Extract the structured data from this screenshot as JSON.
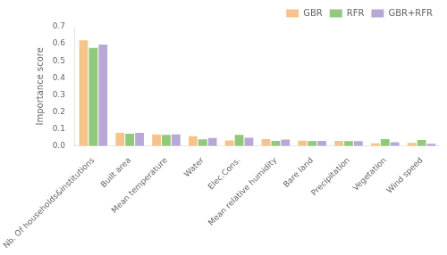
{
  "chart_data": {
    "type": "bar",
    "categories": [
      "Nb. Of households&institutions",
      "Built area",
      "Mean temperature",
      "Water",
      "Elec.Cons.",
      "Mean relative humidity",
      "Bare land",
      "Precipitation",
      "Vegetation",
      "Wind speed"
    ],
    "series": [
      {
        "name": "GBR",
        "color": "#f5c48a",
        "values": [
          0.62,
          0.076,
          0.068,
          0.057,
          0.032,
          0.04,
          0.031,
          0.03,
          0.015,
          0.018
        ]
      },
      {
        "name": "RFR",
        "color": "#90c97a",
        "values": [
          0.575,
          0.072,
          0.065,
          0.038,
          0.065,
          0.03,
          0.028,
          0.028,
          0.04,
          0.035
        ]
      },
      {
        "name": "GBR+RFR",
        "color": "#b8a8d8",
        "values": [
          0.595,
          0.076,
          0.068,
          0.047,
          0.048,
          0.037,
          0.029,
          0.028,
          0.022,
          0.013
        ]
      }
    ],
    "ylabel": "Importance score",
    "ylim": [
      0,
      0.7
    ],
    "yticks": [
      {
        "value": 0,
        "label": "0.0"
      },
      0.1,
      0.2,
      0.3,
      0.4,
      0.5,
      0.6,
      0.7
    ],
    "grid": false,
    "legend": "upper right"
  }
}
